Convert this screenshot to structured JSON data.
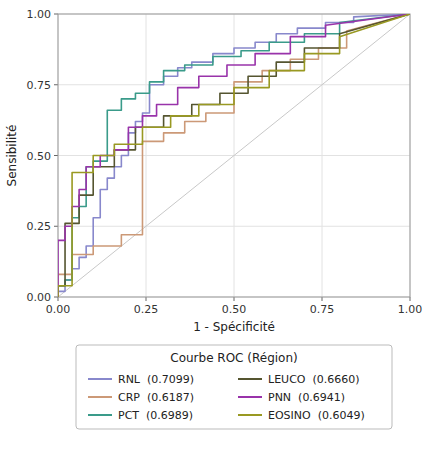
{
  "chart_data": {
    "type": "line",
    "x_label": "1 - Spécificité",
    "y_label": "Sensibilité",
    "legend_title": "Courbe ROC (Région)",
    "legend": "bottom",
    "grid": true,
    "xlim": [
      0.0,
      1.0
    ],
    "ylim": [
      0.0,
      1.0
    ],
    "xticks": [
      {
        "value": 0.0,
        "label": "0.00"
      },
      0.25,
      {
        "value": 0.5,
        "label": "0.50"
      },
      0.75,
      {
        "value": 1.0,
        "label": "1.00"
      }
    ],
    "yticks": [
      {
        "value": 0.0,
        "label": "0.00"
      },
      0.25,
      {
        "value": 0.5,
        "label": "0.50"
      },
      0.75,
      {
        "value": 1.0,
        "label": "1.00"
      }
    ],
    "series": [
      {
        "name": "RNL  (0.7099)",
        "color": "#8888CC",
        "x": [
          0.0,
          0.0,
          0.02,
          0.02,
          0.04,
          0.04,
          0.06,
          0.06,
          0.08,
          0.08,
          0.1,
          0.1,
          0.12,
          0.12,
          0.14,
          0.14,
          0.16,
          0.16,
          0.18,
          0.18,
          0.2,
          0.2,
          0.22,
          0.22,
          0.24,
          0.24,
          0.26,
          0.26,
          0.3,
          0.3,
          0.34,
          0.34,
          0.38,
          0.38,
          0.44,
          0.44,
          0.5,
          0.5,
          0.56,
          0.56,
          0.62,
          0.62,
          0.68,
          0.68,
          0.76,
          0.76,
          0.84,
          0.84,
          1.0
        ],
        "values": [
          0.0,
          0.02,
          0.02,
          0.06,
          0.06,
          0.1,
          0.1,
          0.14,
          0.14,
          0.18,
          0.18,
          0.28,
          0.28,
          0.38,
          0.38,
          0.42,
          0.42,
          0.46,
          0.46,
          0.5,
          0.5,
          0.58,
          0.58,
          0.62,
          0.62,
          0.65,
          0.65,
          0.75,
          0.75,
          0.78,
          0.78,
          0.81,
          0.81,
          0.83,
          0.83,
          0.86,
          0.86,
          0.88,
          0.88,
          0.9,
          0.9,
          0.93,
          0.93,
          0.95,
          0.95,
          0.97,
          0.97,
          0.99,
          1.0
        ]
      },
      {
        "name": "CRP  (0.6187)",
        "color": "#CC9977",
        "x": [
          0.0,
          0.0,
          0.04,
          0.04,
          0.1,
          0.1,
          0.18,
          0.18,
          0.24,
          0.24,
          0.3,
          0.3,
          0.36,
          0.36,
          0.42,
          0.42,
          0.5,
          0.5,
          0.58,
          0.58,
          0.66,
          0.66,
          0.74,
          0.74,
          0.82,
          0.82,
          1.0
        ],
        "values": [
          0.0,
          0.08,
          0.08,
          0.15,
          0.15,
          0.18,
          0.18,
          0.22,
          0.22,
          0.55,
          0.55,
          0.58,
          0.58,
          0.62,
          0.62,
          0.65,
          0.65,
          0.76,
          0.76,
          0.8,
          0.8,
          0.84,
          0.84,
          0.88,
          0.88,
          0.94,
          1.0
        ]
      },
      {
        "name": "PCT  (0.6989)",
        "color": "#3A9B8A",
        "x": [
          0.0,
          0.0,
          0.02,
          0.02,
          0.04,
          0.04,
          0.06,
          0.06,
          0.08,
          0.08,
          0.1,
          0.1,
          0.14,
          0.14,
          0.18,
          0.18,
          0.22,
          0.22,
          0.26,
          0.26,
          0.3,
          0.3,
          0.36,
          0.36,
          0.44,
          0.44,
          0.52,
          0.52,
          0.6,
          0.6,
          0.7,
          0.7,
          0.8,
          0.8,
          1.0
        ],
        "values": [
          0.0,
          0.04,
          0.04,
          0.06,
          0.06,
          0.28,
          0.28,
          0.32,
          0.32,
          0.46,
          0.46,
          0.48,
          0.48,
          0.66,
          0.66,
          0.7,
          0.7,
          0.72,
          0.72,
          0.76,
          0.76,
          0.8,
          0.8,
          0.82,
          0.82,
          0.85,
          0.85,
          0.87,
          0.87,
          0.9,
          0.9,
          0.93,
          0.93,
          0.97,
          1.0
        ]
      },
      {
        "name": "LEUCO  (0.6660)",
        "color": "#555530",
        "x": [
          0.0,
          0.0,
          0.02,
          0.02,
          0.06,
          0.06,
          0.1,
          0.1,
          0.16,
          0.16,
          0.22,
          0.22,
          0.3,
          0.3,
          0.38,
          0.38,
          0.46,
          0.46,
          0.54,
          0.54,
          0.62,
          0.62,
          0.7,
          0.7,
          0.8,
          0.8,
          1.0
        ],
        "values": [
          0.0,
          0.04,
          0.04,
          0.26,
          0.26,
          0.36,
          0.36,
          0.46,
          0.46,
          0.52,
          0.52,
          0.6,
          0.6,
          0.64,
          0.64,
          0.68,
          0.68,
          0.72,
          0.72,
          0.78,
          0.78,
          0.83,
          0.83,
          0.88,
          0.88,
          0.93,
          1.0
        ]
      },
      {
        "name": "PNN  (0.6941)",
        "color": "#9933AA",
        "x": [
          0.0,
          0.0,
          0.02,
          0.02,
          0.04,
          0.04,
          0.06,
          0.06,
          0.08,
          0.08,
          0.12,
          0.12,
          0.16,
          0.16,
          0.2,
          0.2,
          0.24,
          0.24,
          0.28,
          0.28,
          0.34,
          0.34,
          0.4,
          0.4,
          0.48,
          0.48,
          0.56,
          0.56,
          0.66,
          0.66,
          0.76,
          0.76,
          1.0
        ],
        "values": [
          0.0,
          0.2,
          0.2,
          0.25,
          0.25,
          0.32,
          0.32,
          0.38,
          0.38,
          0.46,
          0.46,
          0.5,
          0.5,
          0.52,
          0.52,
          0.6,
          0.6,
          0.64,
          0.64,
          0.68,
          0.68,
          0.74,
          0.74,
          0.78,
          0.78,
          0.82,
          0.82,
          0.86,
          0.86,
          0.92,
          0.92,
          0.96,
          1.0
        ]
      },
      {
        "name": "EOSINO  (0.6049)",
        "color": "#999922",
        "x": [
          0.0,
          0.0,
          0.04,
          0.04,
          0.1,
          0.1,
          0.16,
          0.16,
          0.24,
          0.24,
          0.32,
          0.32,
          0.4,
          0.4,
          0.5,
          0.5,
          0.6,
          0.6,
          0.7,
          0.7,
          0.8,
          0.8,
          1.0
        ],
        "values": [
          0.0,
          0.04,
          0.04,
          0.44,
          0.44,
          0.5,
          0.5,
          0.54,
          0.54,
          0.6,
          0.6,
          0.64,
          0.64,
          0.68,
          0.68,
          0.74,
          0.74,
          0.8,
          0.8,
          0.86,
          0.86,
          0.92,
          1.0
        ]
      }
    ]
  }
}
